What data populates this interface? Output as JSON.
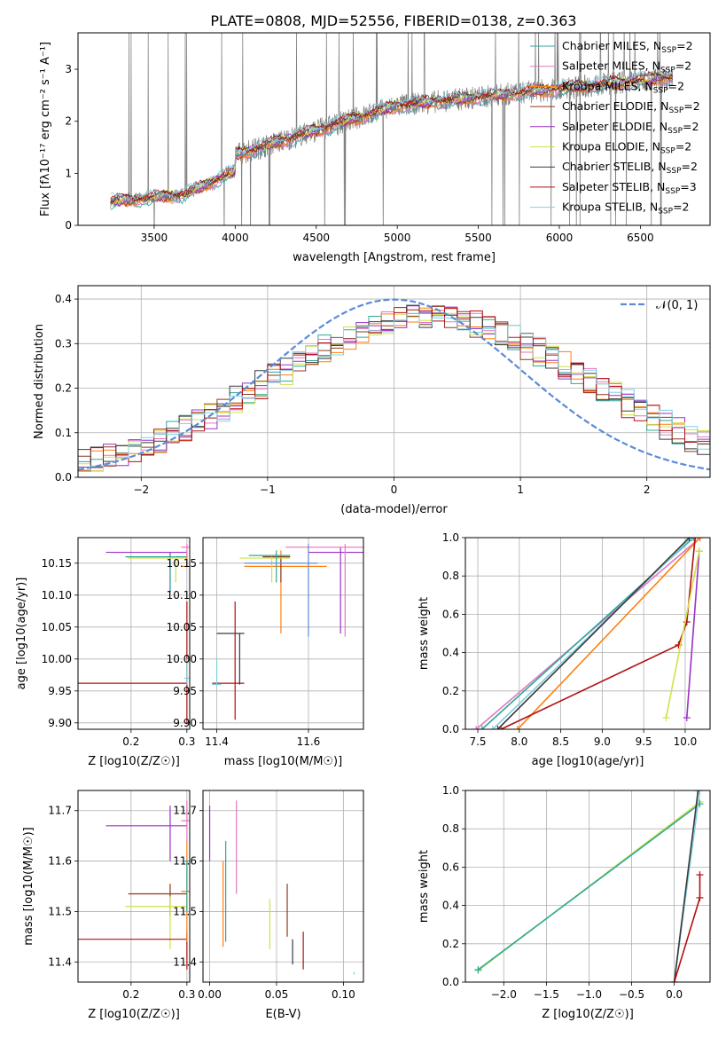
{
  "title": "PLATE=0808, MJD=52556, FIBERID=0138, z=0.363",
  "colors": {
    "Chabrier MILES": "#2ca89a",
    "Salpeter MILES": "#e377c2",
    "Kroupa MILES": "#ff7f0e",
    "Chabrier ELODIE": "#8c3a18",
    "Salpeter ELODIE": "#9b30c8",
    "Kroupa ELODIE": "#d2e04a",
    "Chabrier STELIB": "#3a3a3a",
    "Salpeter STELIB": "#b01010",
    "Kroupa STELIB": "#80d0e0",
    "data": "#808080",
    "normal": "#5b8bd6"
  },
  "chart_data": [
    {
      "type": "line",
      "xlabel": "wavelength [Angstrom, rest frame]",
      "ylabel": "Flux [fλ10⁻¹⁷ erg cm⁻² s⁻¹ A⁻¹]",
      "xlim": [
        3030,
        6930
      ],
      "ylim": [
        0,
        3.7
      ],
      "xticks": [
        "3500",
        "4000",
        "4500",
        "5000",
        "5500",
        "6000",
        "6500"
      ],
      "yticks": [
        "0",
        "1",
        "2",
        "3"
      ],
      "legend_position": "top-right",
      "legend": [
        "Chabrier MILES, N_SSP=2",
        "Salpeter MILES, N_SSP=2",
        "Kroupa MILES, N_SSP=2",
        "Chabrier ELODIE, N_SSP=2",
        "Salpeter ELODIE, N_SSP=2",
        "Kroupa ELODIE, N_SSP=2",
        "Chabrier STELIB, N_SSP=2",
        "Salpeter STELIB, N_SSP=3",
        "Kroupa STELIB, N_SSP=2"
      ],
      "wave_range": [
        3230,
        6700
      ]
    },
    {
      "type": "line",
      "xlabel": "(data-model)/error",
      "ylabel": "Normed distribution",
      "xlim": [
        -2.5,
        2.5
      ],
      "ylim": [
        0,
        0.43
      ],
      "xticks": [
        "−2",
        "−1",
        "0",
        "1",
        "2"
      ],
      "yticks": [
        "0.0",
        "0.1",
        "0.2",
        "0.3",
        "0.4"
      ],
      "legend": "𝒩(0, 1)",
      "legend_position": "top-right",
      "grid": true
    },
    {
      "type": "scatter",
      "xlabel": "Z [log10(Z/Z☉)]",
      "ylabel": "age  [log10(age/yr)]",
      "xlim": [
        0.105,
        0.305
      ],
      "ylim": [
        9.89,
        10.19
      ],
      "xticks": [
        "0.2",
        "0.3"
      ],
      "yticks": [
        "9.90",
        "9.95",
        "10.00",
        "10.05",
        "10.10",
        "10.15"
      ],
      "grid": true
    },
    {
      "type": "scatter",
      "xlabel": "mass [log10(M/M☉)]",
      "ylabel": "",
      "xlim": [
        11.37,
        11.72
      ],
      "ylim": [
        9.89,
        10.19
      ],
      "xticks": [
        "11.4",
        "11.6"
      ],
      "yticks": [
        "9.90",
        "9.95",
        "10.00",
        "10.05",
        "10.10",
        "10.15"
      ],
      "grid": true
    },
    {
      "type": "line",
      "xlabel": "age  [log10(age/yr)]",
      "ylabel": "mass weight",
      "xlim": [
        7.35,
        10.3
      ],
      "ylim": [
        0,
        1
      ],
      "xticks": [
        "7.5",
        "8.0",
        "8.5",
        "9.0",
        "9.5",
        "10.0"
      ],
      "yticks": [
        "0.0",
        "0.2",
        "0.4",
        "0.6",
        "0.8",
        "1.0"
      ],
      "grid": true
    },
    {
      "type": "scatter",
      "xlabel": "Z [log10(Z/Z☉)]",
      "ylabel": "mass [log10(M/M☉)]",
      "xlim": [
        0.105,
        0.305
      ],
      "ylim": [
        11.36,
        11.74
      ],
      "xticks": [
        "0.2",
        "0.3"
      ],
      "yticks": [
        "11.4",
        "11.5",
        "11.6",
        "11.7"
      ],
      "grid": true
    },
    {
      "type": "scatter",
      "xlabel": "E(B-V)",
      "ylabel": "",
      "xlim": [
        -0.005,
        0.115
      ],
      "ylim": [
        11.36,
        11.74
      ],
      "xticks": [
        "0.00",
        "0.05",
        "0.10"
      ],
      "yticks": [
        "11.4",
        "11.5",
        "11.6",
        "11.7"
      ],
      "grid": true
    },
    {
      "type": "line",
      "xlabel": "Z [log10(Z/Z☉)]",
      "ylabel": "mass weight",
      "xlim": [
        -2.45,
        0.42
      ],
      "ylim": [
        0,
        1
      ],
      "xticks": [
        "−2.0",
        "−1.5",
        "−1.0",
        "−0.5",
        "0.0"
      ],
      "yticks": [
        "0.0",
        "0.2",
        "0.4",
        "0.6",
        "0.8",
        "1.0"
      ],
      "grid": true
    }
  ]
}
